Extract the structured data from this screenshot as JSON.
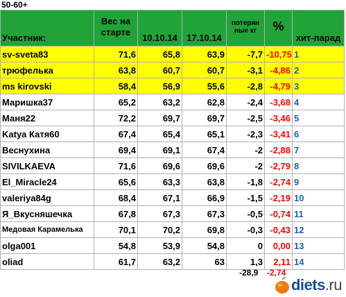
{
  "title": "50-60+",
  "headers": {
    "participant": "Участник:",
    "start_weight_line1": "Вес на",
    "start_weight_line2": "старте",
    "date1": "10.10.14",
    "date2": "17.10.14",
    "loss_line1": "потерян",
    "loss_line2": "ные кг",
    "percent": "%",
    "hitparade": "хит-парад"
  },
  "colors": {
    "header_green": "#21a33a",
    "highlight_yellow": "#ffff00",
    "percent_red": "#ff0000",
    "rank_blue": "#1f5fb5"
  },
  "rows": [
    {
      "name": "sv-sveta83",
      "start": "71,6",
      "d1": "65,8",
      "d2": "63,9",
      "loss": "-7,7",
      "pct": "-10,75",
      "rank": "1",
      "highlight": true
    },
    {
      "name": "трюфелька",
      "start": "63,8",
      "d1": "60,7",
      "d2": "60,7",
      "loss": "-3,1",
      "pct": "-4,86",
      "rank": "2",
      "highlight": true
    },
    {
      "name": "ms kirovski",
      "start": "58,4",
      "d1": "56,9",
      "d2": "55,6",
      "loss": "-2,8",
      "pct": "-4,79",
      "rank": "3",
      "highlight": true
    },
    {
      "name": "Маришка37",
      "start": "65,2",
      "d1": "63,2",
      "d2": "62,8",
      "loss": "-2,4",
      "pct": "-3,68",
      "rank": "4",
      "highlight": false
    },
    {
      "name": "Маня22",
      "start": "72,2",
      "d1": "69,7",
      "d2": "69,7",
      "loss": "-2,5",
      "pct": "-3,46",
      "rank": "5",
      "highlight": false
    },
    {
      "name": "Katya Катя60",
      "start": "67,4",
      "d1": "65,4",
      "d2": "65,1",
      "loss": "-2,3",
      "pct": "-3,41",
      "rank": "6",
      "highlight": false
    },
    {
      "name": "Веснухина",
      "start": "69,4",
      "d1": "69,1",
      "d2": "67,4",
      "loss": "-2",
      "pct": "-2,88",
      "rank": "7",
      "highlight": false
    },
    {
      "name": "SIVILKAEVA",
      "start": "71,6",
      "d1": "69,6",
      "d2": "69,6",
      "loss": "-2",
      "pct": "-2,79",
      "rank": "8",
      "highlight": false
    },
    {
      "name": "El_Miracle24",
      "start": "65,6",
      "d1": "63,3",
      "d2": "63,8",
      "loss": "-1,8",
      "pct": "-2,74",
      "rank": "9",
      "highlight": false
    },
    {
      "name": "valeriya84g",
      "start": "68,4",
      "d1": "67,1",
      "d2": "66,9",
      "loss": "-1,5",
      "pct": "-2,19",
      "rank": "10",
      "highlight": false
    },
    {
      "name": "Я_Вкусняшечка",
      "start": "67,8",
      "d1": "67,3",
      "d2": "67,3",
      "loss": "-0,5",
      "pct": "-0,74",
      "rank": "11",
      "highlight": false
    },
    {
      "name": "Медовая Карамелька",
      "start": "70,1",
      "d1": "70,2",
      "d2": "69,8",
      "loss": "-0,3",
      "pct": "-0,43",
      "rank": "12",
      "highlight": false
    },
    {
      "name": "olga001",
      "start": "54,8",
      "d1": "53,9",
      "d2": "54,8",
      "loss": "0",
      "pct": "0,00",
      "rank": "13",
      "highlight": false
    },
    {
      "name": "oliad",
      "start": "61,7",
      "d1": "63,2",
      "d2": "63",
      "loss": "1,3",
      "pct": "2,11",
      "rank": "14",
      "highlight": false
    }
  ],
  "totals": {
    "loss": "-28,9",
    "pct": "-2,74"
  },
  "logo": {
    "name": "diets",
    "tld": ".ru"
  }
}
